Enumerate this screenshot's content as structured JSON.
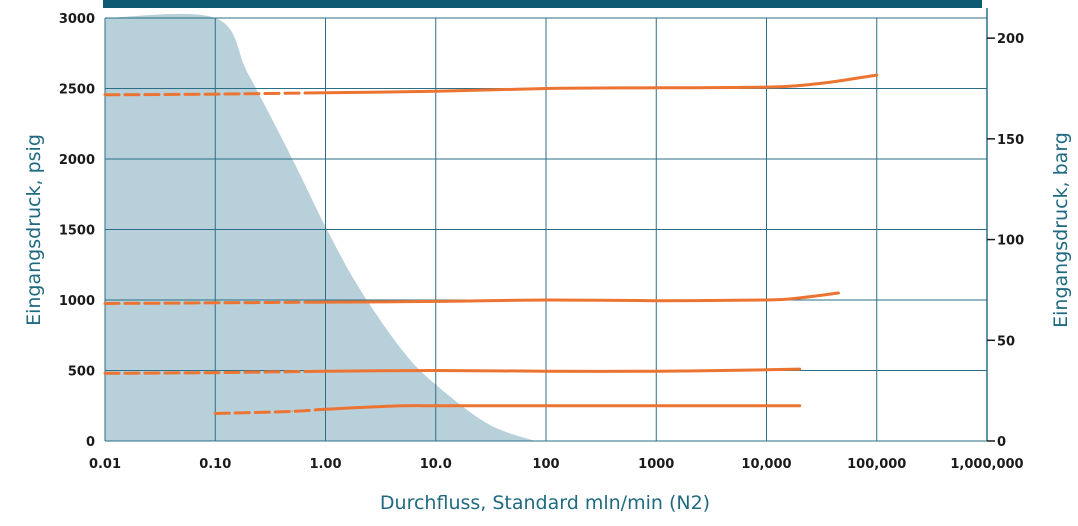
{
  "colors": {
    "accent": "#0f5a73",
    "grid": "#2a6f86",
    "shade": "#b7d0da",
    "series": "#ec7432",
    "axis_title": "#1f6a80",
    "tick_text": "#1a1a1a"
  },
  "chart_data": {
    "type": "line",
    "xscale": "log",
    "xlabel": "Durchfluss, Standard mln/min (N2)",
    "ylabel": "Eingangsdruck, psig",
    "y2label": "Eingangsdruck, barg",
    "xlim": [
      0.01,
      1000000
    ],
    "ylim": [
      0,
      3000
    ],
    "y2lim": [
      0,
      210
    ],
    "x_tick_labels": [
      "0.01",
      "0.10",
      "1.00",
      "10.0",
      "100",
      "1000",
      "10,000",
      "100,000",
      "1,000,000"
    ],
    "y_tick_labels": [
      "0",
      "500",
      "1000",
      "1500",
      "2000",
      "2500",
      "3000"
    ],
    "y2_ticks": [
      0,
      50,
      100,
      150,
      200
    ],
    "y2_tick_labels": [
      "0",
      "50",
      "100",
      "150",
      "200"
    ],
    "grid": true,
    "shaded_region": {
      "x": [
        0.01,
        0.1,
        0.2,
        0.5,
        1,
        2,
        5,
        10,
        30,
        80
      ],
      "y": [
        3000,
        3000,
        2600,
        2000,
        1520,
        1090,
        640,
        400,
        120,
        0
      ]
    },
    "series": [
      {
        "style": "dashed_to_solid",
        "x": [
          0.01,
          0.1,
          1,
          10,
          100,
          1000,
          10000,
          30000,
          100000
        ],
        "y": [
          2455,
          2460,
          2470,
          2480,
          2500,
          2505,
          2510,
          2535,
          2595
        ]
      },
      {
        "style": "dashed_to_solid",
        "x": [
          0.01,
          0.1,
          1,
          10,
          100,
          1000,
          10000,
          20000,
          45000
        ],
        "y": [
          975,
          980,
          985,
          990,
          1000,
          995,
          1000,
          1015,
          1050
        ]
      },
      {
        "style": "dashed_to_solid",
        "x": [
          0.01,
          0.1,
          1,
          10,
          100,
          1000,
          10000,
          20000
        ],
        "y": [
          480,
          485,
          495,
          500,
          495,
          495,
          505,
          510
        ]
      },
      {
        "style": "dashed_to_solid",
        "x": [
          0.1,
          0.5,
          1,
          5,
          10,
          100,
          1000,
          10000,
          20000
        ],
        "y": [
          195,
          210,
          225,
          250,
          250,
          250,
          250,
          250,
          250
        ]
      }
    ]
  }
}
